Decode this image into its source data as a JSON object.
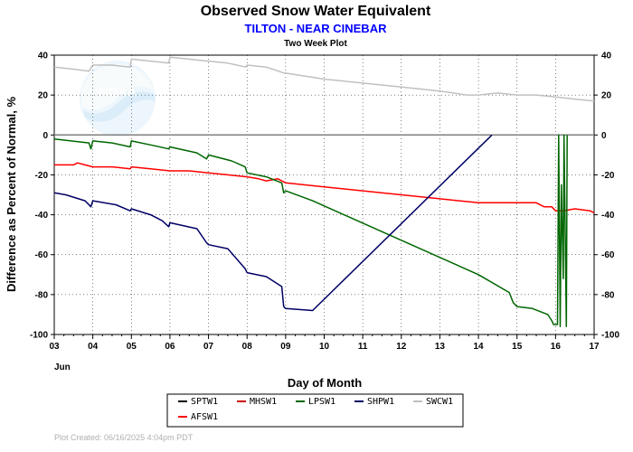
{
  "chart_data": {
    "type": "line",
    "title": "Observed Snow Water Equivalent",
    "subtitle": "TILTON - NEAR CINEBAR",
    "plot_note": "Two Week Plot",
    "xlabel": "Day of Month",
    "ylabel": "Difference as Percent of Normal, %",
    "month_label": "Jun",
    "x_ticks": [
      "03",
      "04",
      "05",
      "06",
      "07",
      "08",
      "09",
      "10",
      "11",
      "12",
      "13",
      "14",
      "15",
      "16",
      "17"
    ],
    "xlim": [
      3,
      17
    ],
    "ylim": [
      -100,
      40
    ],
    "y_ticks": [
      40,
      20,
      0,
      -20,
      -40,
      -60,
      -80,
      -100
    ],
    "grid": true,
    "legend_position": "bottom",
    "footer": "Plot Created:  06/16/2025 4:04pm PDT",
    "logo_text": "NOAA",
    "series": [
      {
        "name": "SPTW1",
        "color": "#000000",
        "x": [],
        "y": []
      },
      {
        "name": "MHSW1",
        "color": "#cc0000",
        "x": [],
        "y": []
      },
      {
        "name": "LPSW1",
        "color": "#006600",
        "x": [
          3,
          3.9,
          3.95,
          4.0,
          4.5,
          4.97,
          5.0,
          5.5,
          5.97,
          6.0,
          6.7,
          6.95,
          7.0,
          7.6,
          7.95,
          8.0,
          8.5,
          8.9,
          8.95,
          9.0,
          9.7,
          14.0,
          14.8,
          14.9,
          15.0,
          15.4,
          15.8,
          15.9,
          15.95,
          16.05,
          16.08,
          16.12,
          16.15,
          16.2,
          16.22,
          16.28,
          16.3
        ],
        "y": [
          -2,
          -4,
          -7,
          -3,
          -4,
          -6,
          -3,
          -5,
          -7,
          -6,
          -9,
          -12,
          -10,
          -13,
          -16,
          -19,
          -21,
          -24,
          -29,
          -28,
          -33,
          -70,
          -79,
          -84,
          -86,
          -87,
          -90,
          -93,
          -95,
          -95,
          0,
          -96,
          -25,
          -72,
          0,
          -96,
          0
        ]
      },
      {
        "name": "SHPW1",
        "color": "#000066",
        "x": [
          3,
          3.3,
          3.8,
          3.95,
          4.0,
          4.6,
          4.97,
          5.0,
          5.5,
          5.8,
          5.97,
          6.0,
          6.7,
          6.95,
          7.0,
          7.5,
          7.95,
          8.0,
          8.5,
          8.9,
          8.95,
          9.0,
          9.7,
          14.35
        ],
        "y": [
          -29,
          -30,
          -33,
          -36,
          -33,
          -35,
          -38,
          -37,
          -40,
          -43,
          -46,
          -44,
          -47,
          -54,
          -55,
          -57,
          -67,
          -69,
          -71,
          -76,
          -86,
          -87,
          -88,
          0
        ]
      },
      {
        "name": "SWCW1",
        "color": "#c0c0c0",
        "x": [
          3,
          3.5,
          3.9,
          4.0,
          4.5,
          4.97,
          5.0,
          5.5,
          5.97,
          6.0,
          6.5,
          6.97,
          7.0,
          7.5,
          7.97,
          8.0,
          8.5,
          8.97,
          9.0,
          10.0,
          11.0,
          12.0,
          13.0,
          13.7,
          14.0,
          14.5,
          15.0,
          15.5,
          16.0,
          16.5,
          17.0
        ],
        "y": [
          34,
          33,
          32,
          35,
          35,
          34,
          38,
          37,
          36,
          39,
          38,
          37,
          37,
          36,
          34,
          35,
          34,
          31,
          31,
          28,
          26,
          24,
          22,
          20,
          20,
          21,
          20,
          20,
          19,
          18,
          17
        ]
      },
      {
        "name": "AFSW1",
        "color": "#ff0000",
        "x": [
          3,
          3.5,
          3.6,
          3.8,
          4.0,
          4.5,
          4.97,
          5.0,
          5.5,
          6.0,
          6.5,
          7.0,
          7.5,
          8.0,
          8.3,
          8.5,
          8.8,
          9.0,
          9.5,
          10.0,
          11.0,
          12.0,
          13.0,
          13.5,
          14.0,
          14.5,
          15.0,
          15.5,
          15.7,
          15.9,
          16.0,
          16.2,
          16.5,
          16.9,
          17.0
        ],
        "y": [
          -15,
          -15,
          -14,
          -15,
          -16,
          -16,
          -17,
          -16,
          -17,
          -18,
          -18,
          -19,
          -20,
          -21,
          -22,
          -23,
          -22,
          -24,
          -25,
          -26,
          -28,
          -30,
          -32,
          -33,
          -34,
          -34,
          -34,
          -34,
          -36,
          -36,
          -38,
          -38,
          -37,
          -38,
          -39
        ]
      }
    ]
  }
}
